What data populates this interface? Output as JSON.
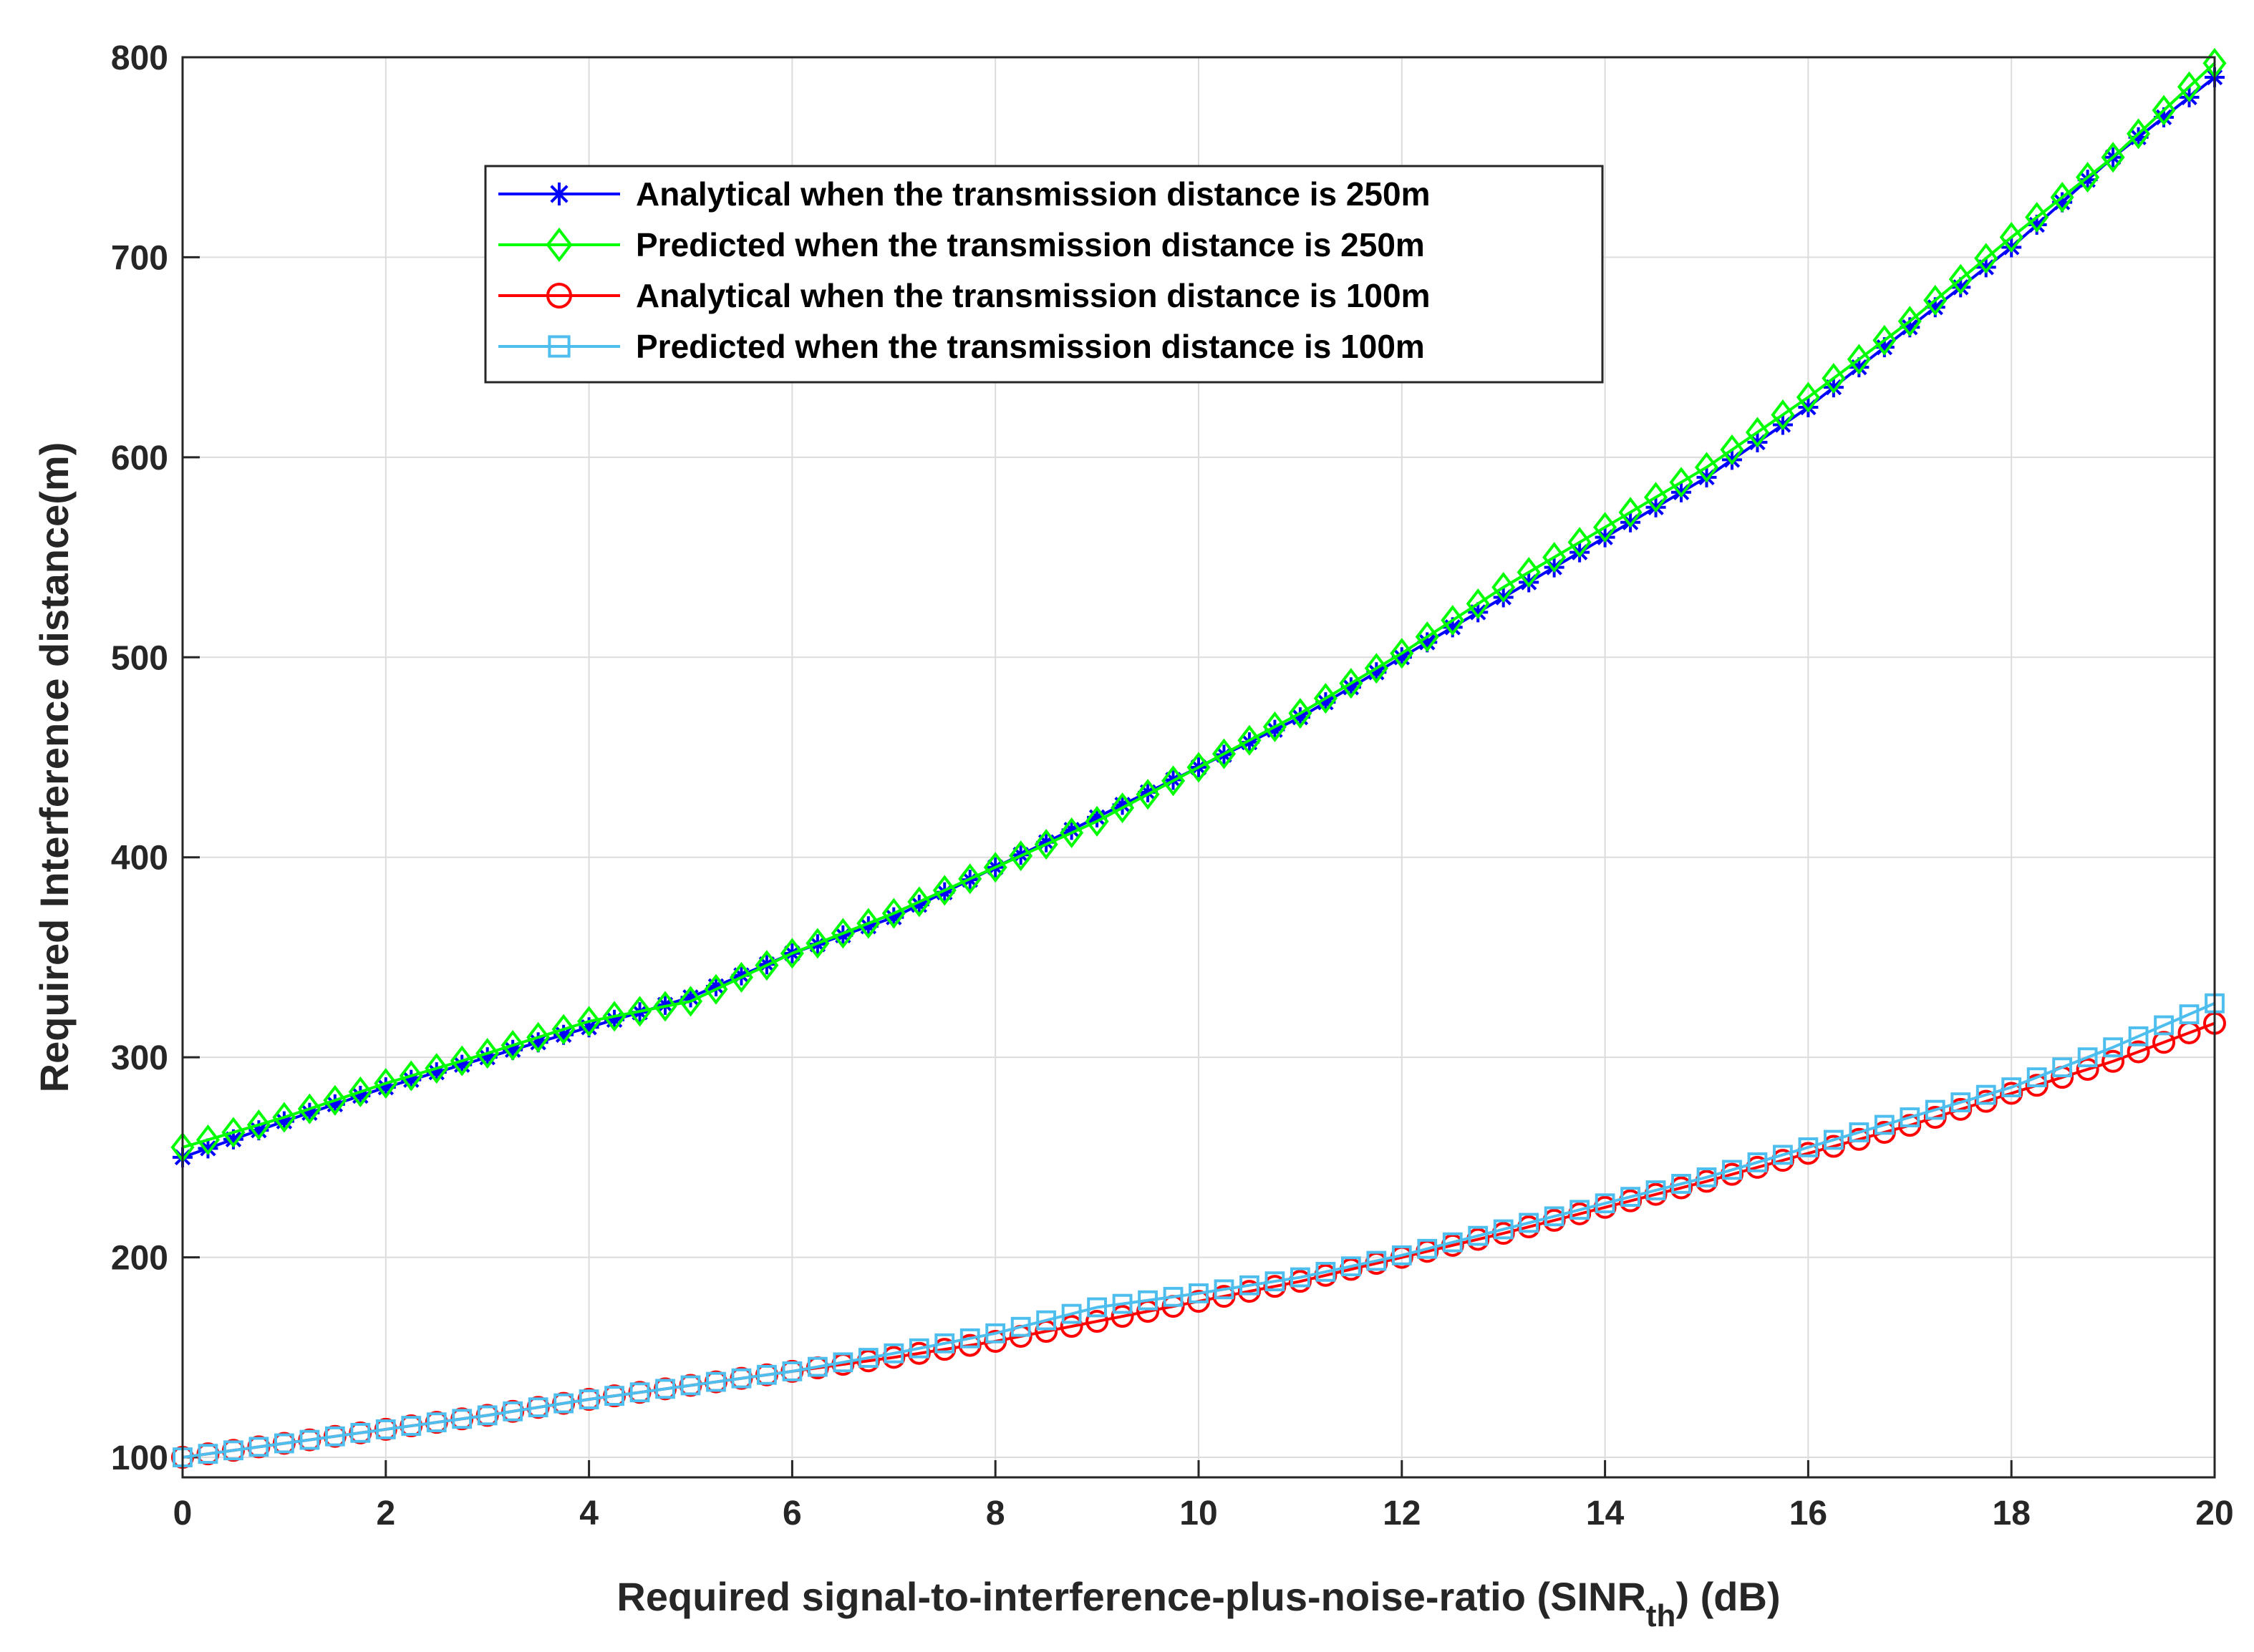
{
  "chart_data": {
    "type": "line",
    "title": "",
    "xlabel_main": "Required signal-to-interference-plus-noise-ratio (SINR",
    "xlabel_sub": "th",
    "xlabel_tail": ") (dB)",
    "ylabel": "Required Interference distance(m)",
    "xlim": [
      0,
      20
    ],
    "ylim": [
      90,
      800
    ],
    "xticks": [
      0,
      2,
      4,
      6,
      8,
      10,
      12,
      14,
      16,
      18,
      20
    ],
    "yticks": [
      100,
      200,
      300,
      400,
      500,
      600,
      700,
      800
    ],
    "grid": true,
    "legend_position": "top-center",
    "x": [
      0,
      1,
      2,
      3,
      4,
      5,
      6,
      7,
      8,
      9,
      10,
      11,
      12,
      13,
      14,
      15,
      16,
      17,
      18,
      19,
      20
    ],
    "series": [
      {
        "name": "Analytical when the transmission distance is 250m",
        "color": "#0000ff",
        "marker": "asterisk",
        "values": [
          250,
          268,
          285,
          300,
          315,
          330,
          352,
          370,
          395,
          420,
          445,
          470,
          500,
          530,
          560,
          590,
          625,
          665,
          705,
          750,
          790
        ]
      },
      {
        "name": "Predicted when the transmission distance is 250m",
        "color": "#00ff00",
        "marker": "diamond",
        "values": [
          255,
          270,
          287,
          302,
          318,
          328,
          352,
          372,
          395,
          418,
          445,
          472,
          502,
          535,
          565,
          595,
          630,
          668,
          710,
          750,
          797
        ]
      },
      {
        "name": "Analytical when the transmission distance is 100m",
        "color": "#ff0000",
        "marker": "circle",
        "values": [
          100,
          107,
          114,
          121,
          129,
          136,
          143,
          150,
          158,
          168,
          178,
          188,
          200,
          212,
          225,
          238,
          252,
          266,
          282,
          298,
          317
        ]
      },
      {
        "name": "Predicted when the transmission distance is 100m",
        "color": "#4dbeee",
        "marker": "square",
        "values": [
          100,
          107,
          114,
          121,
          129,
          136,
          143,
          152,
          162,
          175,
          182,
          190,
          201,
          214,
          227,
          240,
          255,
          270,
          285,
          305,
          327
        ]
      }
    ]
  }
}
